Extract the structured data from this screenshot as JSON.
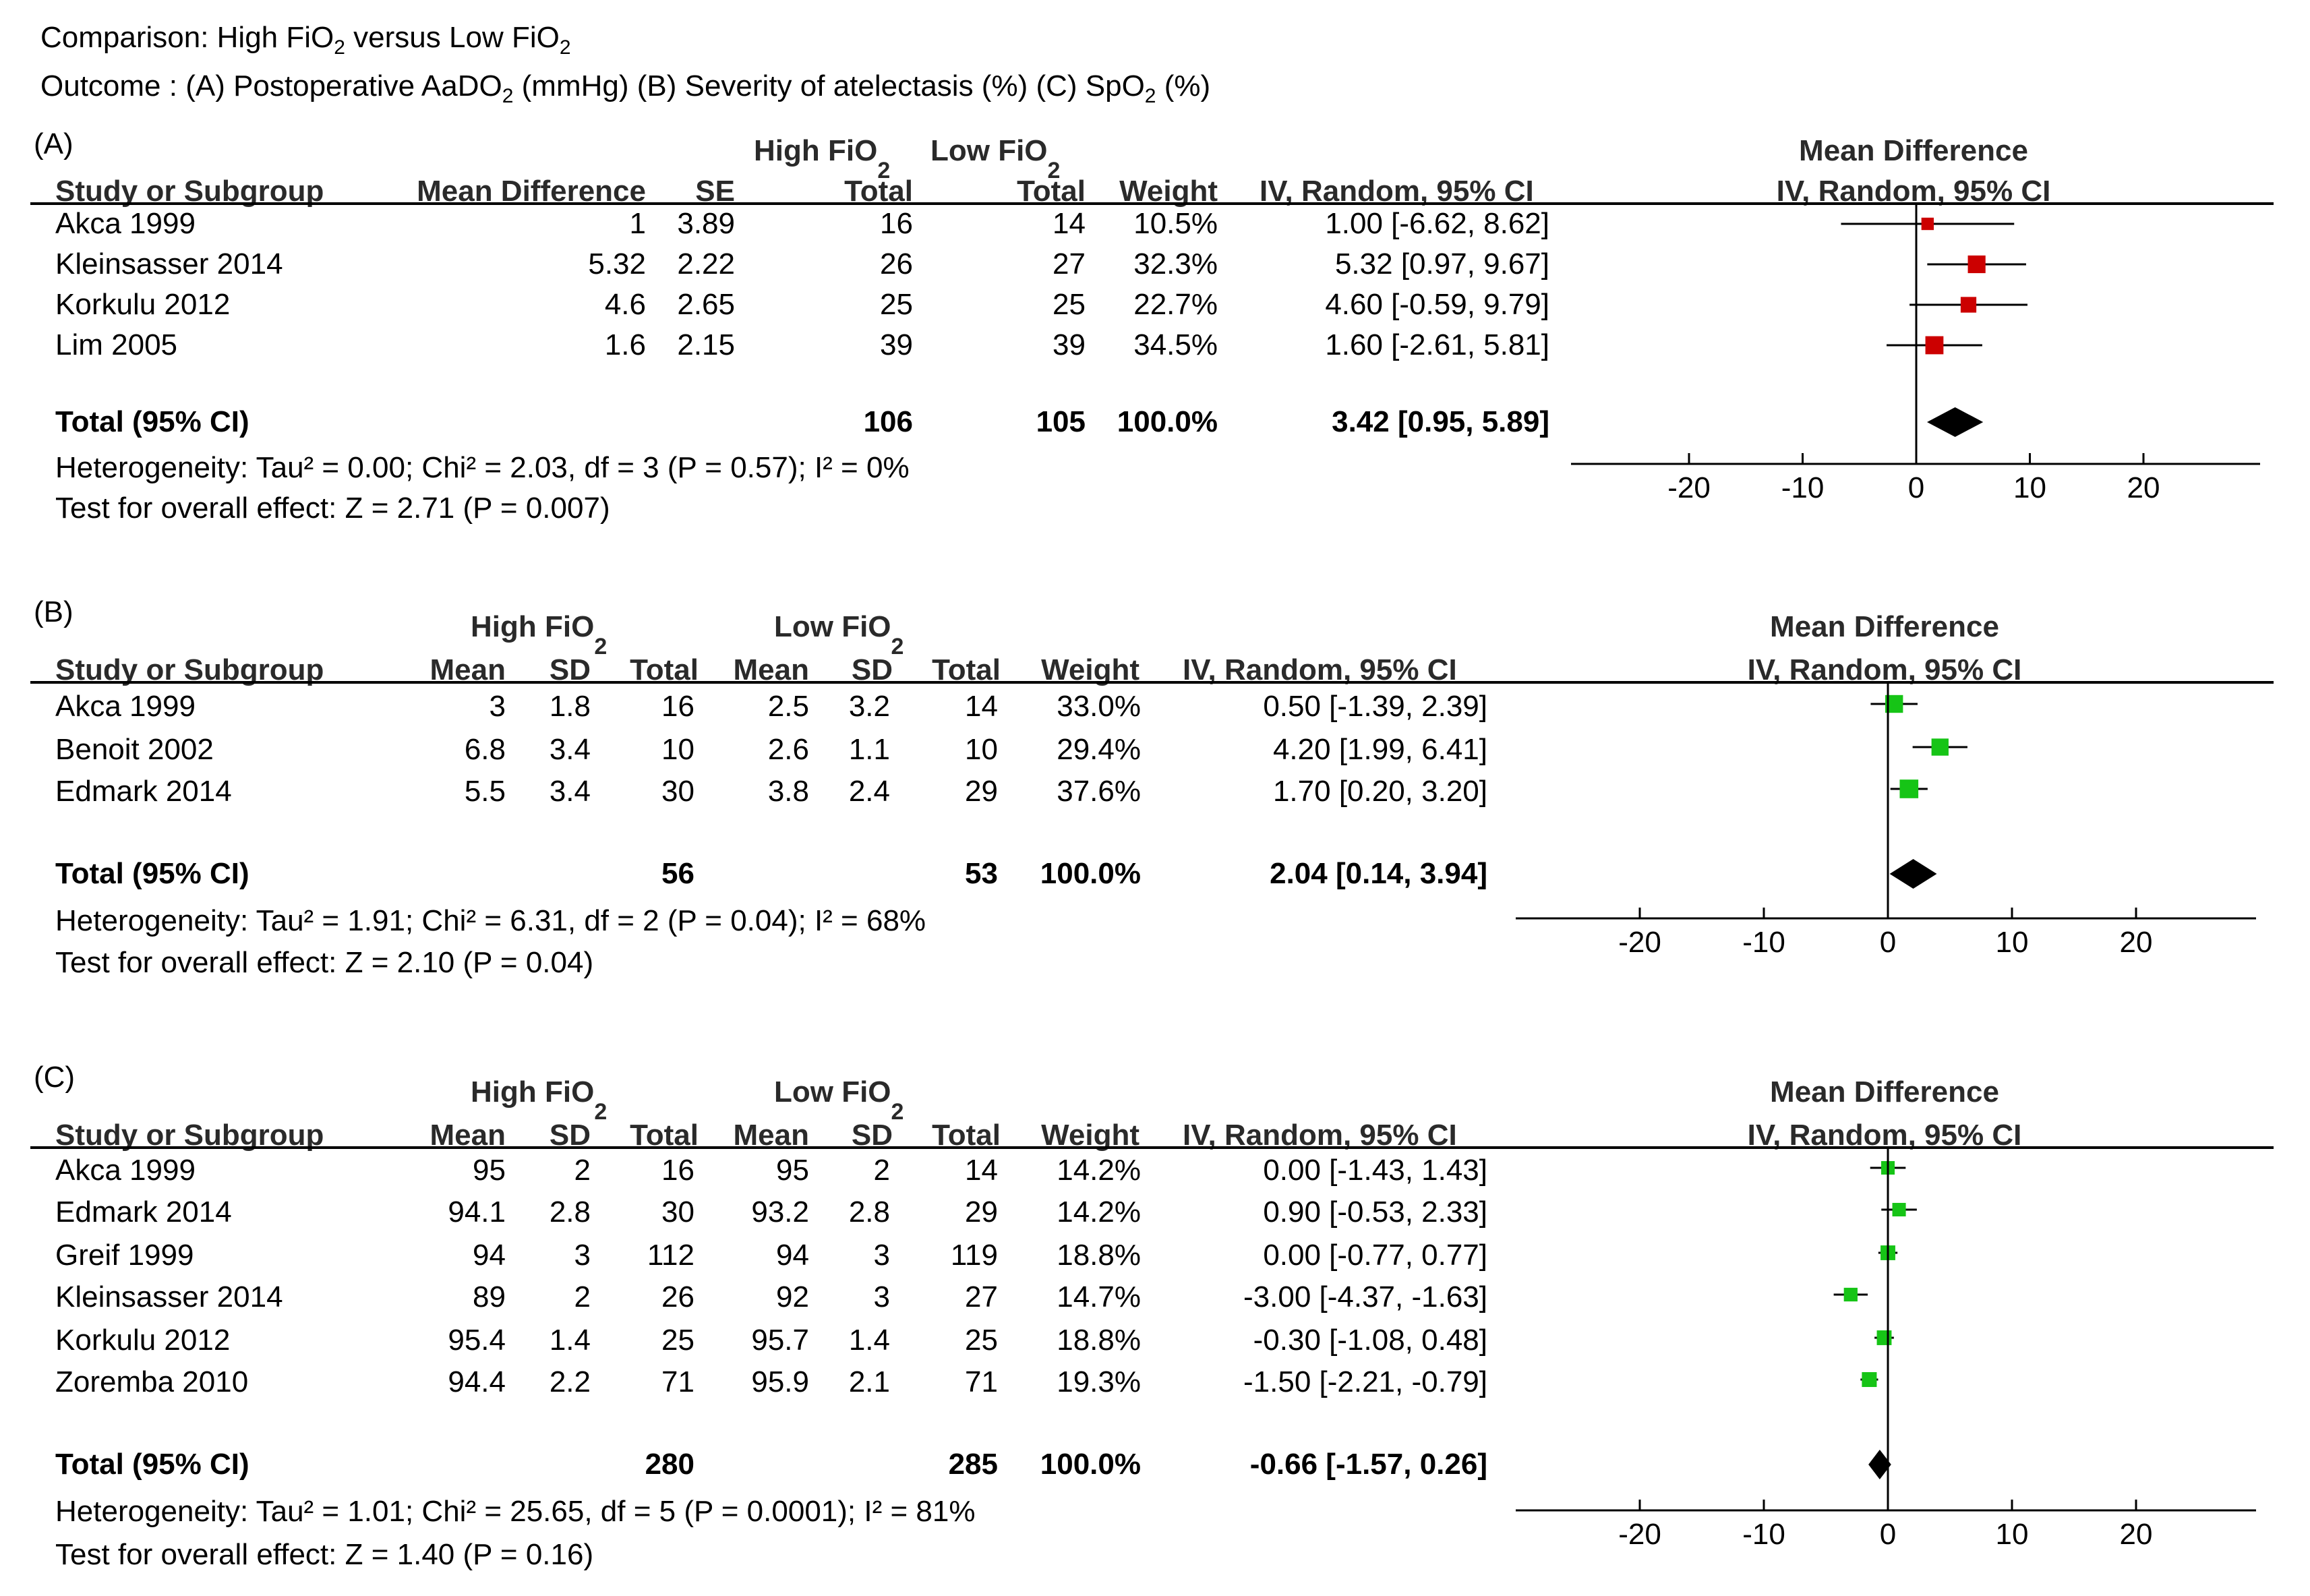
{
  "figure": {
    "title_prefix": "Comparison: High FiO",
    "title_sub": "2",
    "title_mid": " versus Low FiO",
    "title_sub2": "2",
    "outcome_line": {
      "part1": "Outcome : (A) Postoperative AaDO",
      "sub1": "2",
      "part2": " (mmHg) (B) Severity of atelectasis (%) (C) SpO",
      "sub2": "2",
      "part3": " (%)"
    }
  },
  "chart_data": [
    {
      "type": "forest",
      "panel_label": "(A)",
      "group_headers": {
        "high": "High FiO",
        "low": "Low FiO",
        "sub": "2"
      },
      "columns": [
        "Study or Subgroup",
        "Mean Difference",
        "SE",
        "Total",
        "Total",
        "Weight",
        "IV, Random, 95% CI"
      ],
      "plot_header": [
        "Mean Difference",
        "IV, Random, 95% CI"
      ],
      "studies": [
        {
          "name": "Akca 1999",
          "cells": [
            "1",
            "3.89",
            "16",
            "14",
            "10.5%",
            "1.00 [-6.62, 8.62]"
          ],
          "md": 1.0,
          "lo": -6.62,
          "hi": 8.62,
          "weight": 10.5
        },
        {
          "name": "Kleinsasser 2014",
          "cells": [
            "5.32",
            "2.22",
            "26",
            "27",
            "32.3%",
            "5.32 [0.97, 9.67]"
          ],
          "md": 5.32,
          "lo": 0.97,
          "hi": 9.67,
          "weight": 32.3
        },
        {
          "name": "Korkulu 2012",
          "cells": [
            "4.6",
            "2.65",
            "25",
            "25",
            "22.7%",
            "4.60 [-0.59, 9.79]"
          ],
          "md": 4.6,
          "lo": -0.59,
          "hi": 9.79,
          "weight": 22.7
        },
        {
          "name": "Lim 2005",
          "cells": [
            "1.6",
            "2.15",
            "39",
            "39",
            "34.5%",
            "1.60 [-2.61, 5.81]"
          ],
          "md": 1.6,
          "lo": -2.61,
          "hi": 5.81,
          "weight": 34.5
        }
      ],
      "total": {
        "name": "Total (95% CI)",
        "cells": [
          "106",
          "105",
          "100.0%",
          "3.42 [0.95, 5.89]"
        ],
        "md": 3.42,
        "lo": 0.95,
        "hi": 5.89
      },
      "heterogeneity": "Heterogeneity: Tau² = 0.00; Chi² = 2.03, df = 3 (P = 0.57); I² = 0%",
      "overall_effect": "Test for overall effect: Z = 2.71 (P = 0.007)",
      "xlim": [
        -30,
        30
      ],
      "xticks": [
        -20,
        -10,
        0,
        10,
        20
      ],
      "xtick_labels": [
        "-20",
        "-10",
        "0",
        "10",
        "20"
      ],
      "marker_color": "#cc0000"
    },
    {
      "type": "forest",
      "panel_label": "(B)",
      "group_headers": {
        "high": "High FiO",
        "low": "Low FiO",
        "sub": "2"
      },
      "columns": [
        "Study or Subgroup",
        "Mean",
        "SD",
        "Total",
        "Mean",
        "SD",
        "Total",
        "Weight",
        "IV, Random, 95% CI"
      ],
      "plot_header": [
        "Mean Difference",
        "IV, Random, 95% CI"
      ],
      "studies": [
        {
          "name": "Akca 1999",
          "cells": [
            "3",
            "1.8",
            "16",
            "2.5",
            "3.2",
            "14",
            "33.0%",
            "0.50 [-1.39, 2.39]"
          ],
          "md": 0.5,
          "lo": -1.39,
          "hi": 2.39,
          "weight": 33.0
        },
        {
          "name": "Benoit 2002",
          "cells": [
            "6.8",
            "3.4",
            "10",
            "2.6",
            "1.1",
            "10",
            "29.4%",
            "4.20 [1.99, 6.41]"
          ],
          "md": 4.2,
          "lo": 1.99,
          "hi": 6.41,
          "weight": 29.4
        },
        {
          "name": "Edmark 2014",
          "cells": [
            "5.5",
            "3.4",
            "30",
            "3.8",
            "2.4",
            "29",
            "37.6%",
            "1.70 [0.20, 3.20]"
          ],
          "md": 1.7,
          "lo": 0.2,
          "hi": 3.2,
          "weight": 37.6
        }
      ],
      "total": {
        "name": "Total (95% CI)",
        "cells": [
          "56",
          "53",
          "100.0%",
          "2.04 [0.14, 3.94]"
        ],
        "md": 2.04,
        "lo": 0.14,
        "hi": 3.94
      },
      "heterogeneity": "Heterogeneity: Tau² = 1.91; Chi² = 6.31, df = 2 (P = 0.04); I² = 68%",
      "overall_effect": "Test for overall effect: Z = 2.10 (P = 0.04)",
      "xlim": [
        -30,
        30
      ],
      "xticks": [
        -20,
        -10,
        0,
        10,
        20
      ],
      "xtick_labels": [
        "-20",
        "-10",
        "0",
        "10",
        "20"
      ],
      "marker_color": "#16c416"
    },
    {
      "type": "forest",
      "panel_label": "(C)",
      "group_headers": {
        "high": "High FiO",
        "low": "Low FiO",
        "sub": "2"
      },
      "columns": [
        "Study or Subgroup",
        "Mean",
        "SD",
        "Total",
        "Mean",
        "SD",
        "Total",
        "Weight",
        "IV, Random, 95% CI"
      ],
      "plot_header": [
        "Mean Difference",
        "IV, Random, 95% CI"
      ],
      "studies": [
        {
          "name": "Akca 1999",
          "cells": [
            "95",
            "2",
            "16",
            "95",
            "2",
            "14",
            "14.2%",
            "0.00 [-1.43, 1.43]"
          ],
          "md": 0.0,
          "lo": -1.43,
          "hi": 1.43,
          "weight": 14.2
        },
        {
          "name": "Edmark 2014",
          "cells": [
            "94.1",
            "2.8",
            "30",
            "93.2",
            "2.8",
            "29",
            "14.2%",
            "0.90 [-0.53, 2.33]"
          ],
          "md": 0.9,
          "lo": -0.53,
          "hi": 2.33,
          "weight": 14.2
        },
        {
          "name": "Greif 1999",
          "cells": [
            "94",
            "3",
            "112",
            "94",
            "3",
            "119",
            "18.8%",
            "0.00 [-0.77, 0.77]"
          ],
          "md": 0.0,
          "lo": -0.77,
          "hi": 0.77,
          "weight": 18.8
        },
        {
          "name": "Kleinsasser 2014",
          "cells": [
            "89",
            "2",
            "26",
            "92",
            "3",
            "27",
            "14.7%",
            "-3.00 [-4.37, -1.63]"
          ],
          "md": -3.0,
          "lo": -4.37,
          "hi": -1.63,
          "weight": 14.7
        },
        {
          "name": "Korkulu 2012",
          "cells": [
            "95.4",
            "1.4",
            "25",
            "95.7",
            "1.4",
            "25",
            "18.8%",
            "-0.30 [-1.08, 0.48]"
          ],
          "md": -0.3,
          "lo": -1.08,
          "hi": 0.48,
          "weight": 18.8
        },
        {
          "name": "Zoremba 2010",
          "cells": [
            "94.4",
            "2.2",
            "71",
            "95.9",
            "2.1",
            "71",
            "19.3%",
            "-1.50 [-2.21, -0.79]"
          ],
          "md": -1.5,
          "lo": -2.21,
          "hi": -0.79,
          "weight": 19.3
        }
      ],
      "total": {
        "name": "Total (95% CI)",
        "cells": [
          "280",
          "285",
          "100.0%",
          "-0.66 [-1.57, 0.26]"
        ],
        "md": -0.66,
        "lo": -1.57,
        "hi": 0.26
      },
      "heterogeneity": "Heterogeneity: Tau² = 1.01; Chi² = 25.65, df = 5 (P = 0.0001); I² = 81%",
      "overall_effect": "Test for overall effect: Z = 1.40 (P = 0.16)",
      "xlim": [
        -30,
        30
      ],
      "xticks": [
        -20,
        -10,
        0,
        10,
        20
      ],
      "xtick_labels": [
        "-20",
        "-10",
        "0",
        "10",
        "20"
      ],
      "marker_color": "#16c416"
    }
  ]
}
